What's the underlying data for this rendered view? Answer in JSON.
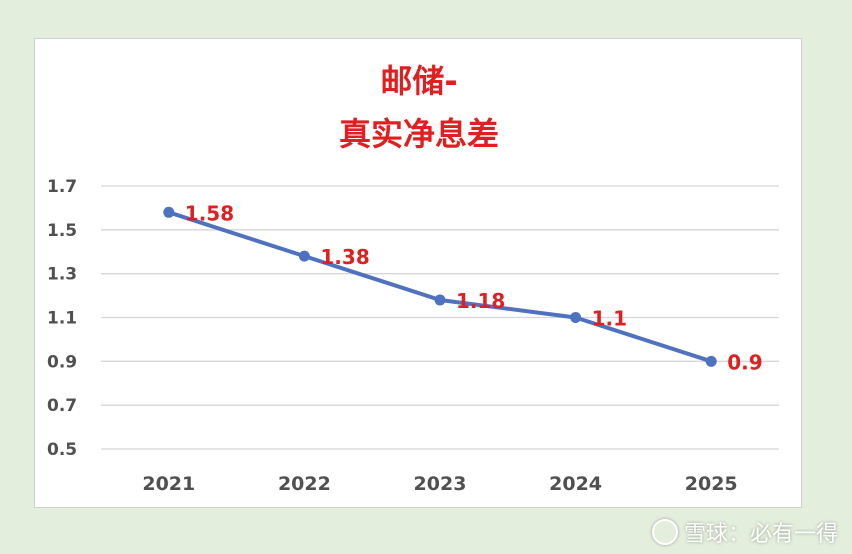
{
  "chart_data": {
    "type": "line",
    "title_lines": [
      "邮储-",
      "真实净息差"
    ],
    "categories": [
      "2021",
      "2022",
      "2023",
      "2024",
      "2025"
    ],
    "series": [
      {
        "values": [
          1.58,
          1.38,
          1.18,
          1.1,
          0.9
        ],
        "labels": [
          "1.58",
          "1.38",
          "1.18",
          "1.1",
          "0.9"
        ]
      }
    ],
    "y_ticks": [
      "0.5",
      "0.7",
      "0.9",
      "1.1",
      "1.3",
      "1.5",
      "1.7"
    ],
    "ylim": [
      0.5,
      1.7
    ],
    "grid": true,
    "legend": "none",
    "colors": {
      "line": "#4f72c0",
      "labels": "#e02020",
      "title": "#e02020"
    }
  },
  "watermark": {
    "text": "雪球：必有一得"
  }
}
